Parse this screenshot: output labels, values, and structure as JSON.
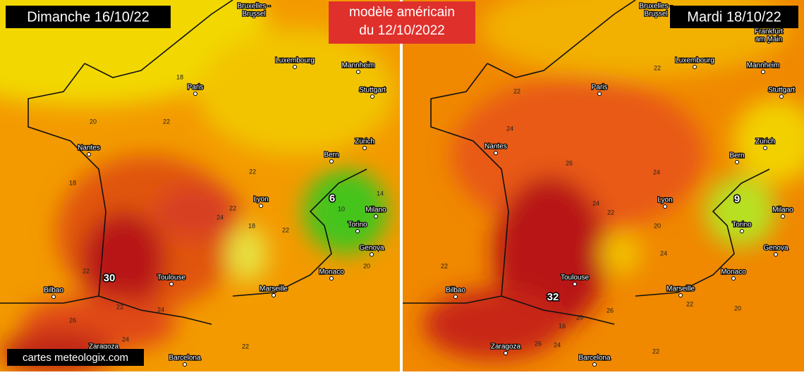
{
  "header": {
    "model": "modèle américain",
    "run_date": "du 12/10/2022"
  },
  "footer": {
    "credit": "cartes meteologix.com"
  },
  "maps": [
    {
      "date": "Dimanche 16/10/22",
      "cities": [
        "Bruxelles -\nBrussel",
        "Luxembourg",
        "Mannheim",
        "Stuttgart",
        "Paris",
        "Nantes",
        "Zürich",
        "Bern",
        "Lyon",
        "Milano",
        "Torino",
        "Genova",
        "Monaco",
        "Marseille",
        "Toulouse",
        "Bilbao",
        "Zaragoza",
        "Barcelona"
      ],
      "extremes": [
        30,
        6
      ],
      "isotherms": [
        18,
        20,
        22,
        18,
        22,
        22,
        24,
        18,
        22,
        20,
        22,
        22,
        24,
        26,
        24,
        22,
        10,
        14
      ]
    },
    {
      "date": "Mardi 18/10/22",
      "cities": [
        "Bruxelles -\nBrussel",
        "Frankfurt\nam Main",
        "Luxembourg",
        "Mannheim",
        "Stuttgart",
        "Paris",
        "Nantes",
        "Zürich",
        "Bern",
        "Lyon",
        "Milano",
        "Torino",
        "Genova",
        "Monaco",
        "Marseille",
        "Toulouse",
        "Bilbao",
        "Zaragoza",
        "Barcelona"
      ],
      "extremes": [
        32,
        9
      ],
      "isotherms": [
        22,
        22,
        24,
        26,
        24,
        24,
        22,
        20,
        24,
        22,
        20,
        22,
        20,
        16,
        26,
        22,
        26,
        24
      ]
    }
  ]
}
